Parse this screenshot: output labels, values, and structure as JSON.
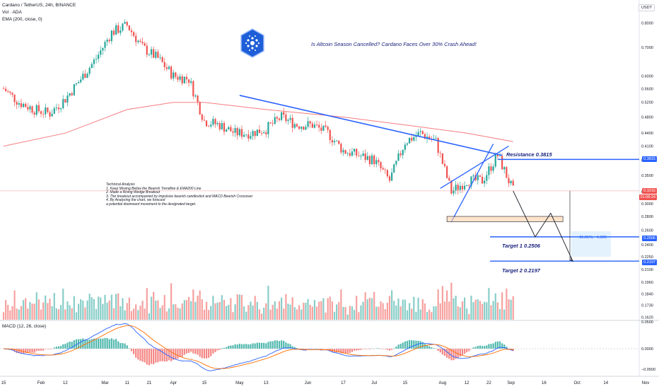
{
  "header": {
    "symbol_title": "Cardano / TetherUS, 24h, BINANCE",
    "volume_legend": "Vol · ADA",
    "ema_legend": "EMA (200, close, 0)",
    "macd_legend": "MACD (12, 26, close)",
    "currency_button": "USDT"
  },
  "headline": "Is Altcoin Season Cancelled? Cardano Faces Over 30% Crash Ahead!",
  "notes": [
    "Technical Analysis",
    "1. Keep Moving Below the Bearish Trendline & EMA200 Line",
    "2. Made a Rising Wedge Breakout",
    "3. The breakout accompanied by impulsive bearish candlestick and MACD Bearish Crossover",
    "4. By Analyzing the chart, we forecast",
    "a potential downward movement to the designated target."
  ],
  "annotations": {
    "resistance": "Resistance 0.3815",
    "target1": "Target 1  0.2506",
    "target2": "Target 2  0.2197",
    "measure": "−31.81%, −1,025"
  },
  "price_tags": {
    "resistance": "0.3815",
    "current": "0.3216",
    "countdown": "01:08:24",
    "target1": "0.2506",
    "target2": "0.2197"
  },
  "colors": {
    "up": "#26a69a",
    "down": "#ef5350",
    "ema": "#f77c80",
    "trend": "#2962ff",
    "macd_line": "#2962ff",
    "signal_line": "#ff6d00",
    "text_dark": "#1a237e"
  },
  "chart_data": {
    "type": "candlestick",
    "title": "Cardano / TetherUS, 24h, BINANCE",
    "y_scale": "log",
    "ylim": [
      0.15,
      0.85
    ],
    "y_ticks": [
      0.8,
      0.7,
      0.6,
      0.56,
      0.52,
      0.48,
      0.44,
      0.41,
      0.38,
      0.35,
      0.32,
      0.3,
      0.28,
      0.26,
      0.24,
      0.225,
      0.21,
      0.196,
      0.184,
      0.173,
      0.162
    ],
    "y_tick_labels": [
      "0.8000",
      "0.7000",
      "0.6000",
      "0.5600",
      "0.5200",
      "0.4800",
      "0.4400",
      "0.4100",
      "0.3800",
      "0.3500",
      "0.3200",
      "0.3000",
      "0.2800",
      "0.2600",
      "0.2400",
      "0.2250",
      "0.2100",
      "0.1960",
      "0.1840",
      "0.1730",
      "0.1620"
    ],
    "x_ticks": [
      "15",
      "Feb",
      "12",
      "Mar",
      "11",
      "21",
      "Apr",
      "15",
      "May",
      "13",
      "Jun",
      "17",
      "Jul",
      "15",
      "Aug",
      "12",
      "22",
      "Sep",
      "16",
      "Oct",
      "14",
      "Nov"
    ],
    "macd_ticks": [
      "0.0500",
      "0.0000",
      "−0.0500"
    ],
    "close_path": [
      [
        "Jan 15",
        0.56
      ],
      [
        "Jan 22",
        0.52
      ],
      [
        "Jan 29",
        0.5
      ],
      [
        "Feb 5",
        0.49
      ],
      [
        "Feb 12",
        0.53
      ],
      [
        "Feb 19",
        0.59
      ],
      [
        "Feb 26",
        0.66
      ],
      [
        "Mar 4",
        0.76
      ],
      [
        "Mar 11",
        0.79
      ],
      [
        "Mar 18",
        0.7
      ],
      [
        "Mar 25",
        0.66
      ],
      [
        "Apr 1",
        0.6
      ],
      [
        "Apr 8",
        0.59
      ],
      [
        "Apr 15",
        0.47
      ],
      [
        "Apr 22",
        0.46
      ],
      [
        "Apr 29",
        0.44
      ],
      [
        "May 6",
        0.44
      ],
      [
        "May 13",
        0.45
      ],
      [
        "May 20",
        0.48
      ],
      [
        "May 27",
        0.46
      ],
      [
        "Jun 3",
        0.46
      ],
      [
        "Jun 10",
        0.44
      ],
      [
        "Jun 17",
        0.4
      ],
      [
        "Jun 24",
        0.39
      ],
      [
        "Jul 1",
        0.38
      ],
      [
        "Jul 8",
        0.34
      ],
      [
        "Jul 15",
        0.42
      ],
      [
        "Jul 22",
        0.44
      ],
      [
        "Jul 29",
        0.42
      ],
      [
        "Aug 5",
        0.32
      ],
      [
        "Aug 12",
        0.34
      ],
      [
        "Aug 19",
        0.34
      ],
      [
        "Aug 26",
        0.39
      ],
      [
        "Sep 2",
        0.3216
      ]
    ],
    "ema200_path": [
      [
        "Jan 15",
        0.41
      ],
      [
        "Feb 12",
        0.44
      ],
      [
        "Mar 11",
        0.5
      ],
      [
        "Apr 1",
        0.52
      ],
      [
        "Apr 15",
        0.52
      ],
      [
        "May 13",
        0.5
      ],
      [
        "Jun 17",
        0.48
      ],
      [
        "Jul 15",
        0.46
      ],
      [
        "Aug 12",
        0.44
      ],
      [
        "Sep 2",
        0.42
      ]
    ],
    "levels": {
      "resistance": 0.3815,
      "target1": 0.2506,
      "target2": 0.2197,
      "support_zone": [
        0.28,
        0.272
      ]
    },
    "projection": [
      [
        "Sep 2",
        0.3216
      ],
      [
        "Sep 12",
        0.2506
      ],
      [
        "Sep 19",
        0.285
      ],
      [
        "Sep 29",
        0.2197
      ]
    ],
    "grid": false,
    "legend": "top-left"
  }
}
